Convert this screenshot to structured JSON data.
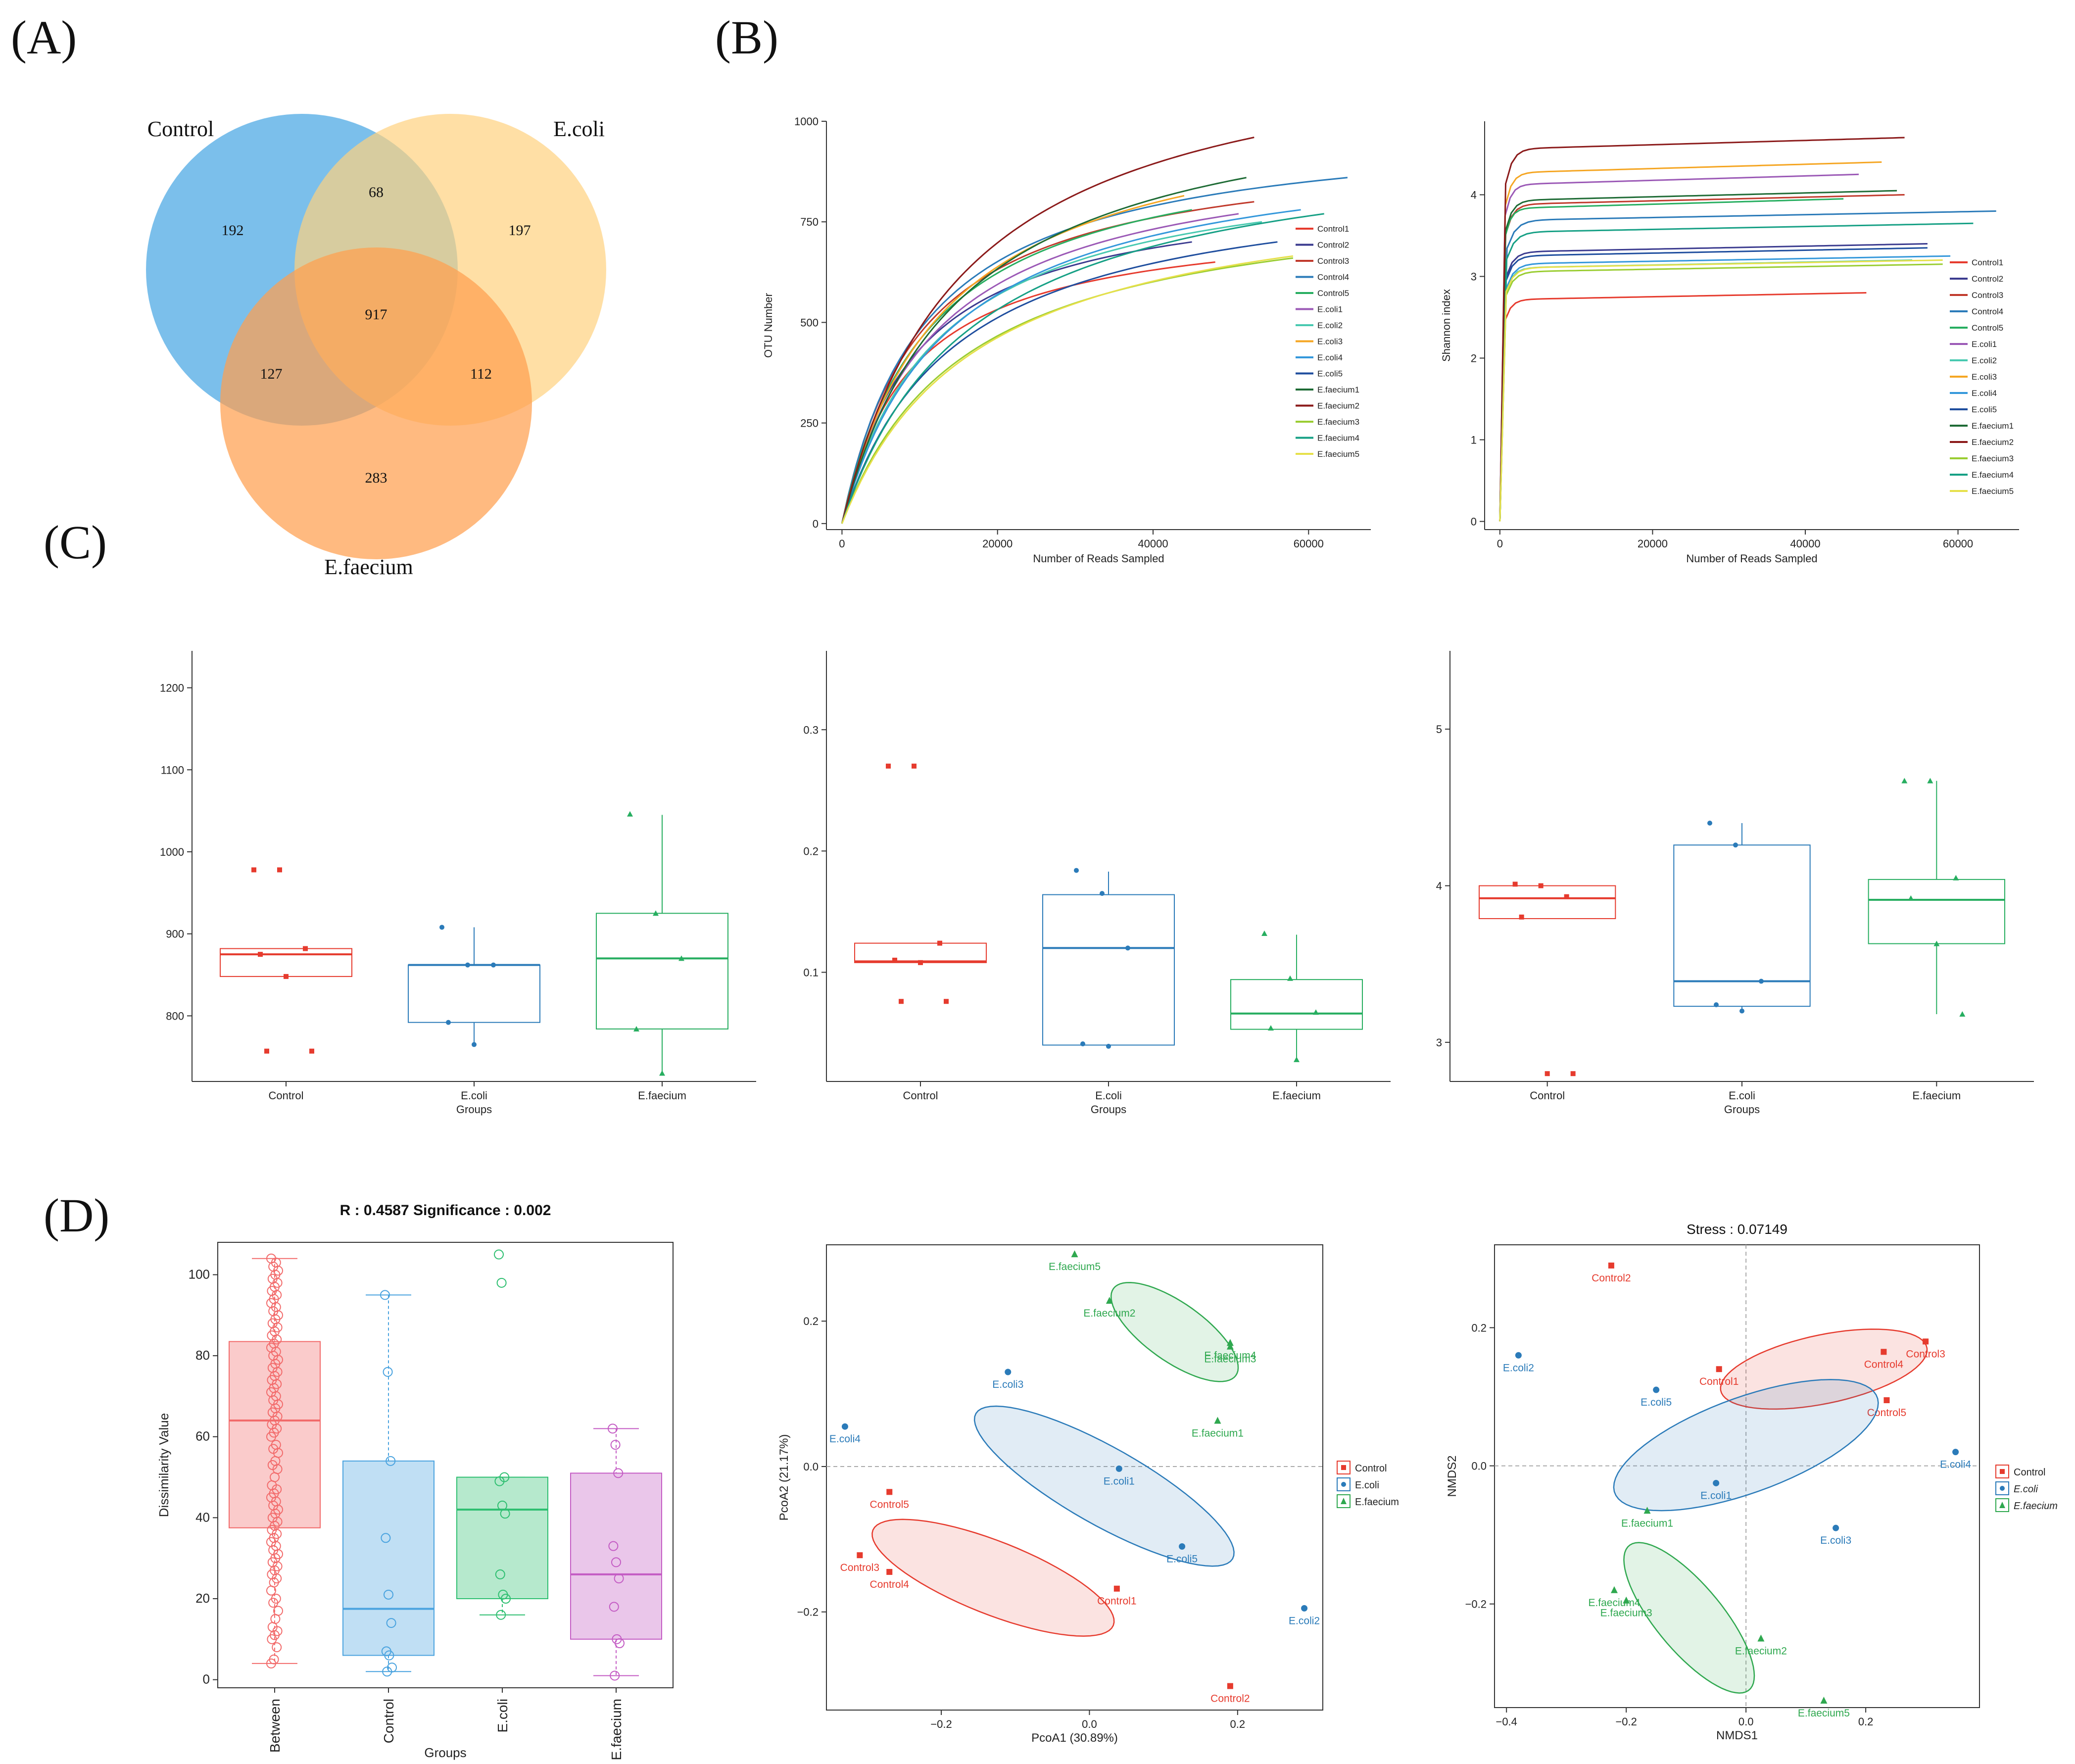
{
  "panels": {
    "A": "(A)",
    "B": "(B)",
    "C": "(C)",
    "D": "(D)"
  },
  "venn": {
    "sets": [
      {
        "name": "Control",
        "color": "#5aafe6"
      },
      {
        "name": "E.coli",
        "color": "#ffd27f"
      },
      {
        "name": "E.faecium",
        "color": "#ff9f4f"
      }
    ],
    "regions": {
      "control_only": "192",
      "ecoli_only": "197",
      "efaecium_only": "283",
      "control_ecoli": "68",
      "control_efaecium": "127",
      "ecoli_efaecium": "112",
      "all": "917"
    }
  },
  "chart_data": [
    {
      "id": "rarefaction-otu",
      "type": "line",
      "xlabel": "Number of Reads Sampled",
      "ylabel": "OTU Number",
      "xlim": [
        -2000,
        68000
      ],
      "ylim": [
        -15,
        1000
      ],
      "xticks": [
        0,
        20000,
        40000,
        60000
      ],
      "yticks": [
        0,
        250,
        500,
        750,
        1000
      ],
      "series": [
        {
          "name": "Control1",
          "color": "#e63b2e",
          "final_x": 48000,
          "final_y": 650
        },
        {
          "name": "Control2",
          "color": "#3b3b8f",
          "final_x": 45000,
          "final_y": 700
        },
        {
          "name": "Control3",
          "color": "#c0392b",
          "final_x": 53000,
          "final_y": 800
        },
        {
          "name": "Control4",
          "color": "#2b7bb9",
          "final_x": 65000,
          "final_y": 860
        },
        {
          "name": "Control5",
          "color": "#27ae60",
          "final_x": 45000,
          "final_y": 780
        },
        {
          "name": "E.coli1",
          "color": "#9b59b6",
          "final_x": 51000,
          "final_y": 770
        },
        {
          "name": "E.coli2",
          "color": "#48c9b0",
          "final_x": 54000,
          "final_y": 750
        },
        {
          "name": "E.coli3",
          "color": "#f5a623",
          "final_x": 44000,
          "final_y": 815
        },
        {
          "name": "E.coli4",
          "color": "#3498db",
          "final_x": 59000,
          "final_y": 780
        },
        {
          "name": "E.coli5",
          "color": "#1f4e9e",
          "final_x": 56000,
          "final_y": 700
        },
        {
          "name": "E.faecium1",
          "color": "#1e6b35",
          "final_x": 52000,
          "final_y": 860
        },
        {
          "name": "E.faecium2",
          "color": "#8b1a1a",
          "final_x": 53000,
          "final_y": 960
        },
        {
          "name": "E.faecium3",
          "color": "#9acd32",
          "final_x": 58000,
          "final_y": 660
        },
        {
          "name": "E.faecium4",
          "color": "#16a085",
          "final_x": 62000,
          "final_y": 770
        },
        {
          "name": "E.faecium5",
          "color": "#e6e04a",
          "final_x": 58000,
          "final_y": 665
        }
      ]
    },
    {
      "id": "rarefaction-shannon",
      "type": "line",
      "xlabel": "Number of Reads Sampled",
      "ylabel": "Shannon index",
      "xlim": [
        -2000,
        68000
      ],
      "ylim": [
        -0.1,
        4.9
      ],
      "xticks": [
        0,
        20000,
        40000,
        60000
      ],
      "yticks": [
        0,
        1,
        2,
        3,
        4
      ],
      "series": [
        {
          "name": "Control1",
          "color": "#e63b2e",
          "final_x": 48000,
          "final_y": 2.8
        },
        {
          "name": "Control2",
          "color": "#3b3b8f",
          "final_x": 56000,
          "final_y": 3.4
        },
        {
          "name": "Control3",
          "color": "#c0392b",
          "final_x": 53000,
          "final_y": 4.0
        },
        {
          "name": "Control4",
          "color": "#2b7bb9",
          "final_x": 65000,
          "final_y": 3.8
        },
        {
          "name": "Control5",
          "color": "#27ae60",
          "final_x": 45000,
          "final_y": 3.95
        },
        {
          "name": "E.coli1",
          "color": "#9b59b6",
          "final_x": 47000,
          "final_y": 4.25
        },
        {
          "name": "E.coli2",
          "color": "#48c9b0",
          "final_x": 54000,
          "final_y": 3.2
        },
        {
          "name": "E.coli3",
          "color": "#f5a623",
          "final_x": 50000,
          "final_y": 4.4
        },
        {
          "name": "E.coli4",
          "color": "#3498db",
          "final_x": 59000,
          "final_y": 3.25
        },
        {
          "name": "E.coli5",
          "color": "#1f4e9e",
          "final_x": 56000,
          "final_y": 3.35
        },
        {
          "name": "E.faecium1",
          "color": "#1e6b35",
          "final_x": 52000,
          "final_y": 4.05
        },
        {
          "name": "E.faecium2",
          "color": "#8b1a1a",
          "final_x": 53000,
          "final_y": 4.7
        },
        {
          "name": "E.faecium3",
          "color": "#9acd32",
          "final_x": 58000,
          "final_y": 3.15
        },
        {
          "name": "E.faecium4",
          "color": "#16a085",
          "final_x": 62000,
          "final_y": 3.65
        },
        {
          "name": "E.faecium5",
          "color": "#e6e04a",
          "final_x": 58000,
          "final_y": 3.2
        }
      ]
    },
    {
      "id": "alpha-box-1",
      "type": "box",
      "xlabel": "Groups",
      "ylabel": "",
      "ylim": [
        720,
        1245
      ],
      "yticks": [
        800,
        900,
        1000,
        1100,
        1200
      ],
      "groups": [
        {
          "name": "Control",
          "color": "#e63b2e",
          "q1": 848,
          "median": 875,
          "q3": 882,
          "whislo": 848,
          "whishi": 882,
          "points": [
            978,
            978,
            882,
            875,
            848,
            757,
            757
          ]
        },
        {
          "name": "E.coli",
          "color": "#2b7bb9",
          "q1": 792,
          "median": 862,
          "q3": 862,
          "whislo": 765,
          "whishi": 908,
          "points": [
            908,
            862,
            862,
            792,
            765
          ]
        },
        {
          "name": "E.faecium",
          "color": "#27ae60",
          "q1": 784,
          "median": 870,
          "q3": 925,
          "whislo": 730,
          "whishi": 1045,
          "points": [
            1046,
            925,
            870,
            784,
            730
          ]
        }
      ]
    },
    {
      "id": "alpha-box-2",
      "type": "box",
      "xlabel": "Groups",
      "ylabel": "",
      "ylim": [
        0.01,
        0.365
      ],
      "yticks": [
        0.1,
        0.2,
        0.3
      ],
      "groups": [
        {
          "name": "Control",
          "color": "#e63b2e",
          "q1": 0.108,
          "median": 0.109,
          "q3": 0.124,
          "whislo": 0.108,
          "whishi": 0.124,
          "points": [
            0.27,
            0.27,
            0.124,
            0.11,
            0.108,
            0.076,
            0.076
          ]
        },
        {
          "name": "E.coli",
          "color": "#2b7bb9",
          "q1": 0.04,
          "median": 0.12,
          "q3": 0.164,
          "whislo": 0.04,
          "whishi": 0.183,
          "points": [
            0.184,
            0.165,
            0.12,
            0.041,
            0.039
          ]
        },
        {
          "name": "E.faecium",
          "color": "#27ae60",
          "q1": 0.053,
          "median": 0.066,
          "q3": 0.094,
          "whislo": 0.028,
          "whishi": 0.131,
          "points": [
            0.132,
            0.095,
            0.067,
            0.054,
            0.028
          ]
        }
      ]
    },
    {
      "id": "alpha-box-3",
      "type": "box",
      "xlabel": "Groups",
      "ylabel": "",
      "ylim": [
        2.75,
        5.5
      ],
      "yticks": [
        3,
        4,
        5
      ],
      "groups": [
        {
          "name": "Control",
          "color": "#e63b2e",
          "q1": 3.79,
          "median": 3.92,
          "q3": 4.0,
          "whislo": 3.79,
          "whishi": 4.0,
          "points": [
            4.01,
            4.0,
            3.93,
            3.8,
            2.8,
            2.8
          ]
        },
        {
          "name": "E.coli",
          "color": "#2b7bb9",
          "q1": 3.23,
          "median": 3.39,
          "q3": 4.26,
          "whislo": 3.2,
          "whishi": 4.4,
          "points": [
            4.4,
            4.26,
            3.39,
            3.24,
            3.2
          ]
        },
        {
          "name": "E.faecium",
          "color": "#27ae60",
          "q1": 3.63,
          "median": 3.91,
          "q3": 4.04,
          "whislo": 3.18,
          "whishi": 4.67,
          "points": [
            4.67,
            4.67,
            4.05,
            3.92,
            3.63,
            3.18
          ]
        }
      ]
    },
    {
      "id": "anosim-box",
      "type": "box",
      "title": "R : 0.4587  Significance : 0.002",
      "xlabel": "Groups",
      "ylabel": "Dissimilarity Value",
      "ylim": [
        -2,
        108
      ],
      "yticks": [
        0,
        20,
        40,
        60,
        80,
        100
      ],
      "groups": [
        {
          "name": "Between",
          "color": "#f26b6b",
          "q1": 37.5,
          "median": 64,
          "q3": 83.5,
          "whislo": 4,
          "whishi": 104,
          "points": [
            4,
            5,
            8,
            10,
            11,
            12,
            13,
            15,
            17,
            19,
            20,
            22,
            24,
            25,
            26,
            27,
            28,
            29,
            30,
            31,
            32,
            33,
            34,
            35,
            36,
            37,
            38,
            39,
            40,
            41,
            42,
            43,
            44,
            45,
            46,
            47,
            48,
            50,
            52,
            53,
            54,
            56,
            57,
            58,
            60,
            61,
            62,
            63,
            64,
            65,
            66,
            67,
            68,
            69,
            70,
            71,
            72,
            73,
            74,
            75,
            76,
            77,
            78,
            79,
            80,
            81,
            82,
            83,
            84,
            85,
            86,
            87,
            88,
            89,
            90,
            91,
            92,
            93,
            94,
            95,
            96,
            97,
            98,
            99,
            100,
            101,
            102,
            103,
            104
          ]
        },
        {
          "name": "Control",
          "color": "#4aa3df",
          "q1": 6,
          "median": 17.5,
          "q3": 54,
          "whislo": 2,
          "whishi": 95,
          "points": [
            95,
            76,
            54,
            35,
            21,
            14,
            7,
            6,
            3,
            2
          ]
        },
        {
          "name": "E.coli",
          "color": "#2fbf71",
          "q1": 20,
          "median": 42,
          "q3": 50,
          "whislo": 16,
          "whishi": 50,
          "points": [
            105,
            98,
            50,
            49,
            43,
            41,
            26,
            21,
            20,
            16
          ]
        },
        {
          "name": "E.faecium",
          "color": "#c45cc4",
          "q1": 10,
          "median": 26,
          "q3": 51,
          "whislo": 1,
          "whishi": 62,
          "points": [
            62,
            58,
            51,
            33,
            29,
            25,
            18,
            10,
            9,
            1
          ]
        }
      ]
    },
    {
      "id": "pcoa",
      "type": "scatter",
      "xlabel": "PcoA1 (30.89%)",
      "ylabel": "PcoA2 (21.17%)",
      "xlim": [
        -0.355,
        0.315
      ],
      "ylim": [
        -0.335,
        0.305
      ],
      "xticks": [
        -0.2,
        0.0,
        0.2
      ],
      "yticks": [
        -0.2,
        0.0,
        0.2
      ],
      "legend": [
        "Control",
        "E.coli",
        "E.faecium"
      ],
      "series": [
        {
          "name": "Control",
          "color": "#e63b2e",
          "marker": "square",
          "points": [
            {
              "label": "Control1",
              "x": 0.037,
              "y": -0.168
            },
            {
              "label": "Control2",
              "x": 0.19,
              "y": -0.302
            },
            {
              "label": "Control3",
              "x": -0.31,
              "y": -0.122
            },
            {
              "label": "Control4",
              "x": -0.27,
              "y": -0.145
            },
            {
              "label": "Control5",
              "x": -0.27,
              "y": -0.035
            }
          ],
          "ellipse": {
            "cx": -0.13,
            "cy": -0.153,
            "rx": 0.175,
            "ry": 0.05,
            "angle": 22
          }
        },
        {
          "name": "E.coli",
          "color": "#2b7bb9",
          "marker": "circle",
          "points": [
            {
              "label": "E.coli1",
              "x": 0.04,
              "y": -0.003
            },
            {
              "label": "E.coli2",
              "x": 0.29,
              "y": -0.195
            },
            {
              "label": "E.coli3",
              "x": -0.11,
              "y": 0.13
            },
            {
              "label": "E.coli4",
              "x": -0.33,
              "y": 0.055
            },
            {
              "label": "E.coli5",
              "x": 0.125,
              "y": -0.11
            }
          ],
          "ellipse": {
            "cx": 0.02,
            "cy": -0.027,
            "rx": 0.2,
            "ry": 0.053,
            "angle": 30
          }
        },
        {
          "name": "E.faecium",
          "color": "#2fa84f",
          "marker": "triangle",
          "points": [
            {
              "label": "E.faecium1",
              "x": 0.173,
              "y": 0.063
            },
            {
              "label": "E.faecium2",
              "x": 0.027,
              "y": 0.228
            },
            {
              "label": "E.faecium3",
              "x": 0.19,
              "y": 0.165
            },
            {
              "label": "E.faecium4",
              "x": 0.19,
              "y": 0.17
            },
            {
              "label": "E.faecium5",
              "x": -0.02,
              "y": 0.292
            }
          ],
          "ellipse": {
            "cx": 0.115,
            "cy": 0.185,
            "rx": 0.102,
            "ry": 0.04,
            "angle": 36
          }
        }
      ]
    },
    {
      "id": "nmds",
      "type": "scatter",
      "title": "Stress : 0.07149",
      "xlabel": "NMDS1",
      "ylabel": "NMDS2",
      "xlim": [
        -0.42,
        0.39
      ],
      "ylim": [
        -0.35,
        0.32
      ],
      "xticks": [
        -0.4,
        -0.2,
        0.0,
        0.2
      ],
      "yticks": [
        -0.2,
        0.0,
        0.2
      ],
      "legend": [
        "Control",
        "E.coli",
        "E.faecium"
      ],
      "series": [
        {
          "name": "Control",
          "color": "#e63b2e",
          "marker": "square",
          "points": [
            {
              "label": "Control1",
              "x": -0.045,
              "y": 0.14
            },
            {
              "label": "Control2",
              "x": -0.225,
              "y": 0.29
            },
            {
              "label": "Control3",
              "x": 0.3,
              "y": 0.18
            },
            {
              "label": "Control4",
              "x": 0.23,
              "y": 0.165
            },
            {
              "label": "Control5",
              "x": 0.235,
              "y": 0.095
            }
          ],
          "ellipse": {
            "cx": 0.13,
            "cy": 0.14,
            "rx": 0.175,
            "ry": 0.05,
            "angle": -10
          }
        },
        {
          "name": "E.coli",
          "color": "#2b7bb9",
          "marker": "circle",
          "points": [
            {
              "label": "E.coli1",
              "x": -0.05,
              "y": -0.025
            },
            {
              "label": "E.coli2",
              "x": -0.38,
              "y": 0.16
            },
            {
              "label": "E.coli3",
              "x": 0.15,
              "y": -0.09
            },
            {
              "label": "E.coli4",
              "x": 0.35,
              "y": 0.02
            },
            {
              "label": "E.coli5",
              "x": -0.15,
              "y": 0.11
            }
          ],
          "ellipse": {
            "cx": 0.0,
            "cy": 0.03,
            "rx": 0.23,
            "ry": 0.07,
            "angle": -17
          }
        },
        {
          "name": "E.faecium",
          "color": "#2fa84f",
          "marker": "triangle",
          "points": [
            {
              "label": "E.faecium1",
              "x": -0.165,
              "y": -0.065
            },
            {
              "label": "E.faecium2",
              "x": 0.025,
              "y": -0.25
            },
            {
              "label": "E.faecium3",
              "x": -0.2,
              "y": -0.195
            },
            {
              "label": "E.faecium4",
              "x": -0.22,
              "y": -0.18
            },
            {
              "label": "E.faecium5",
              "x": 0.13,
              "y": -0.34
            }
          ],
          "ellipse": {
            "cx": -0.095,
            "cy": -0.22,
            "rx": 0.145,
            "ry": 0.052,
            "angle": 45
          }
        }
      ]
    }
  ]
}
